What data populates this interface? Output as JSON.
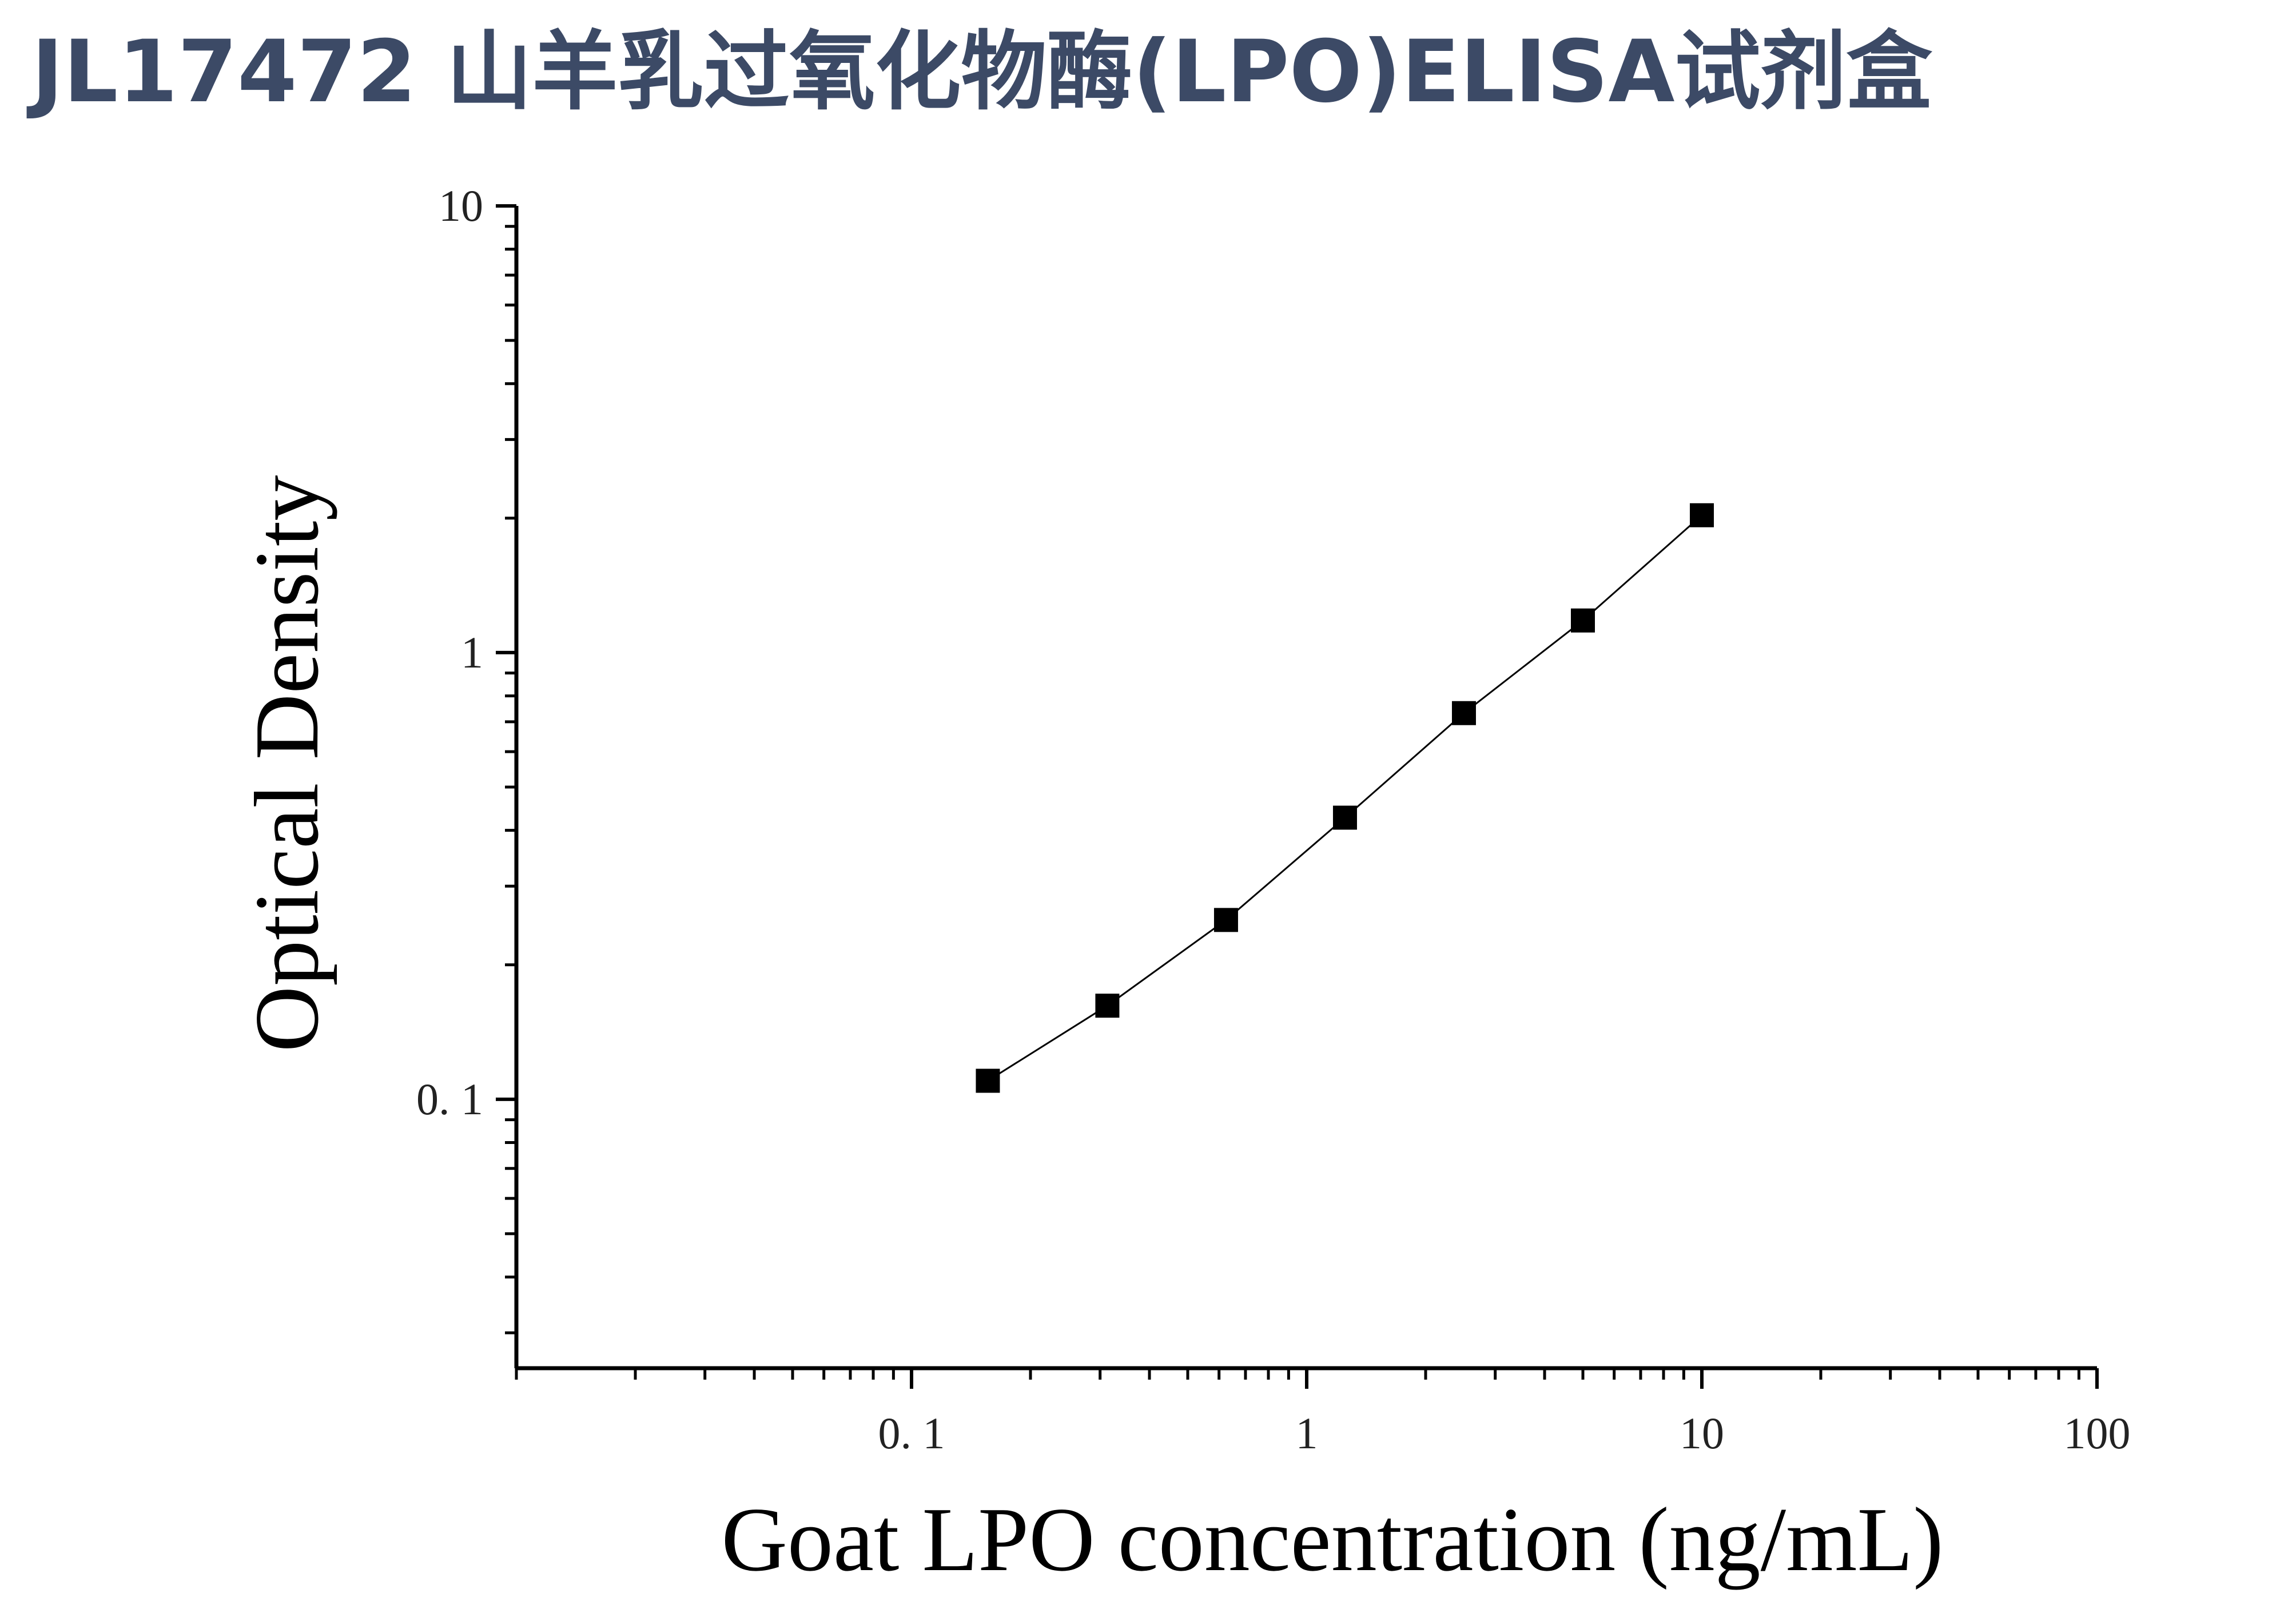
{
  "title": "JL17472 山羊乳过氧化物酶(LPO)ELISA试剂盒",
  "chart_data": {
    "type": "line",
    "title": "JL17472 山羊乳过氧化物酶(LPO)ELISA试剂盒",
    "xlabel": "Goat LPO concentration (ng/mL)",
    "ylabel": "Optical Density",
    "x_scale": "log",
    "y_scale": "log",
    "xlim": [
      0.01,
      100
    ],
    "ylim": [
      0.025,
      10
    ],
    "x_ticks": [
      0.1,
      1,
      10,
      100
    ],
    "x_tick_labels": [
      "0. 1",
      "1",
      "10",
      "100"
    ],
    "y_ticks": [
      0.1,
      1,
      10
    ],
    "y_tick_labels": [
      "0. 1",
      "1",
      "10"
    ],
    "grid": false,
    "marker": "square",
    "colors": {
      "title": "#3c4a66",
      "series": "#000000",
      "axis": "#000000"
    },
    "series": [
      {
        "x": [
          0.156,
          0.313,
          0.625,
          1.25,
          2.5,
          5,
          10
        ],
        "y": [
          0.11,
          0.162,
          0.252,
          0.427,
          0.732,
          1.18,
          2.03
        ]
      }
    ]
  }
}
